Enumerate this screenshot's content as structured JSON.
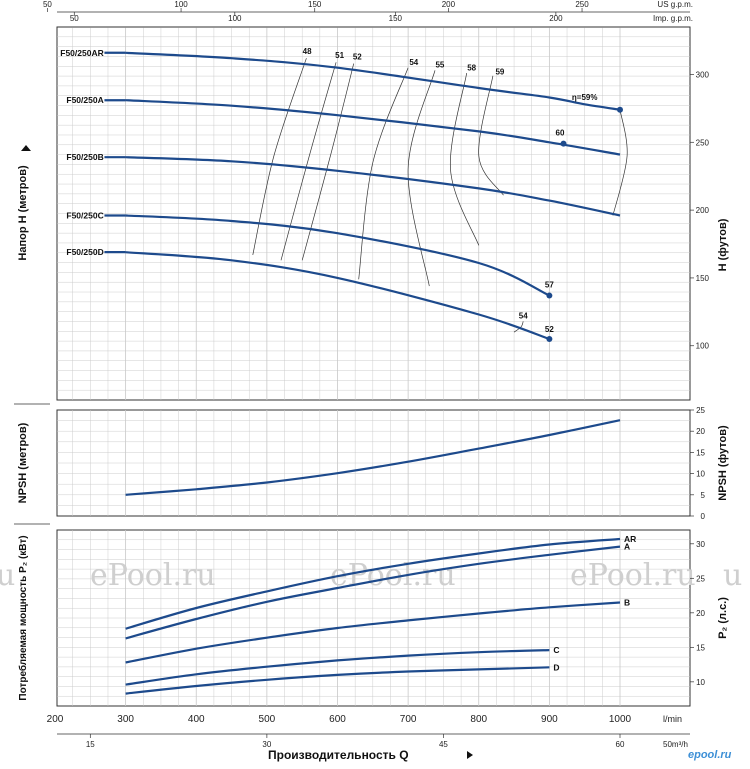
{
  "chart_data": [
    {
      "type": "line",
      "name": "head",
      "ylabel": "Напор H   (метров)",
      "ylabel_right": "H   (футов)",
      "x_unit": "l/min",
      "xlim": [
        200,
        1000
      ],
      "ylim_feet": [
        60,
        335
      ],
      "y_ticks_feet": [
        100,
        150,
        200,
        250,
        300
      ],
      "series": [
        {
          "name": "F50/250AR",
          "x": [
            300,
            450,
            600,
            800,
            900,
            950,
            1000
          ],
          "y": [
            316,
            312,
            305,
            290,
            283,
            278,
            274
          ]
        },
        {
          "name": "F50/250A",
          "x": [
            300,
            450,
            600,
            800,
            900,
            1000
          ],
          "y": [
            281,
            277,
            270,
            258,
            250,
            241
          ]
        },
        {
          "name": "F50/250B",
          "x": [
            300,
            450,
            600,
            800,
            900,
            1000
          ],
          "y": [
            239,
            236,
            229,
            216,
            207,
            196
          ]
        },
        {
          "name": "F50/250C",
          "x": [
            300,
            450,
            600,
            800,
            900
          ],
          "y": [
            196,
            192,
            183,
            161,
            137
          ]
        },
        {
          "name": "F50/250D",
          "x": [
            300,
            450,
            600,
            800,
            900
          ],
          "y": [
            169,
            163,
            150,
            123,
            105
          ]
        }
      ],
      "efficiency_labels": [
        {
          "text": "48",
          "x": 557,
          "y": 315
        },
        {
          "text": "51",
          "x": 603,
          "y": 312
        },
        {
          "text": "52",
          "x": 628,
          "y": 311
        },
        {
          "text": "54",
          "x": 708,
          "y": 307
        },
        {
          "text": "55",
          "x": 745,
          "y": 305
        },
        {
          "text": "58",
          "x": 790,
          "y": 303
        },
        {
          "text": "59",
          "x": 830,
          "y": 300
        },
        {
          "text": "η=59%",
          "x": 950,
          "y": 281
        },
        {
          "text": "60",
          "x": 915,
          "y": 255
        },
        {
          "text": "57",
          "x": 900,
          "y": 143
        },
        {
          "text": "54",
          "x": 863,
          "y": 120
        },
        {
          "text": "52",
          "x": 900,
          "y": 110
        }
      ],
      "efficiency_points": [
        {
          "x": 1000,
          "y": 274
        },
        {
          "x": 920,
          "y": 249
        },
        {
          "x": 900,
          "y": 137
        },
        {
          "x": 900,
          "y": 105
        }
      ],
      "efficiency_lines": [
        {
          "x": [
            556,
            510,
            480
          ],
          "y": [
            312,
            240,
            167
          ]
        },
        {
          "x": [
            598,
            560,
            520
          ],
          "y": [
            309,
            240,
            163
          ]
        },
        {
          "x": [
            623,
            590,
            550
          ],
          "y": [
            308,
            240,
            163
          ]
        },
        {
          "x": [
            700,
            650,
            630
          ],
          "y": [
            305,
            235,
            149
          ]
        },
        {
          "x": [
            738,
            700,
            730
          ],
          "y": [
            303,
            230,
            144
          ]
        },
        {
          "x": [
            783,
            760,
            800
          ],
          "y": [
            301,
            230,
            174
          ]
        },
        {
          "x": [
            820,
            800,
            835
          ],
          "y": [
            299,
            240,
            211
          ]
        },
        {
          "x": [
            1000,
            1010,
            990
          ],
          "y": [
            274,
            240,
            196
          ]
        },
        {
          "x": [
            863,
            860,
            850
          ],
          "y": [
            118,
            114,
            110
          ]
        }
      ]
    },
    {
      "type": "line",
      "name": "npsh",
      "ylabel": "NPSH   (метров)",
      "ylabel_right": "NPSH   (футов)",
      "xlim": [
        200,
        1000
      ],
      "ylim_feet": [
        0,
        25
      ],
      "y_ticks_feet": [
        0,
        5,
        10,
        15,
        20,
        25
      ],
      "series": [
        {
          "name": "NPSH",
          "x": [
            300,
            400,
            500,
            600,
            700,
            800,
            900,
            1000
          ],
          "y": [
            5,
            6.3,
            7.9,
            10.1,
            12.8,
            15.9,
            19.1,
            22.6
          ]
        }
      ]
    },
    {
      "type": "line",
      "name": "power",
      "ylabel": "Потребляемая мощность P₂ (кВт)",
      "ylabel_right": "P₂  (л.с.)",
      "xlim": [
        200,
        1000
      ],
      "ylim_hp": [
        6.5,
        32
      ],
      "y_ticks_hp": [
        10,
        15,
        20,
        25,
        30
      ],
      "series": [
        {
          "name": "AR",
          "x": [
            300,
            400,
            500,
            600,
            700,
            800,
            900,
            1000
          ],
          "y": [
            17.7,
            20.7,
            23.1,
            25.3,
            27.1,
            28.6,
            29.9,
            30.7
          ]
        },
        {
          "name": "A",
          "x": [
            300,
            400,
            500,
            600,
            700,
            800,
            900,
            1000
          ],
          "y": [
            16.3,
            19.1,
            21.6,
            23.6,
            25.5,
            27.1,
            28.4,
            29.6
          ]
        },
        {
          "name": "B",
          "x": [
            300,
            400,
            500,
            600,
            700,
            800,
            900,
            1000
          ],
          "y": [
            12.8,
            14.8,
            16.4,
            17.8,
            18.9,
            19.9,
            20.8,
            21.5
          ]
        },
        {
          "name": "C",
          "x": [
            300,
            400,
            500,
            600,
            700,
            800,
            900
          ],
          "y": [
            9.6,
            11.1,
            12.2,
            13.1,
            13.8,
            14.3,
            14.6
          ]
        },
        {
          "name": "D",
          "x": [
            300,
            400,
            500,
            600,
            700,
            800,
            900
          ],
          "y": [
            8.3,
            9.4,
            10.3,
            11.0,
            11.5,
            11.8,
            12.1
          ]
        }
      ]
    }
  ],
  "axes": {
    "top_usgpm": {
      "unit": "US g.p.m.",
      "ticks": [
        50,
        100,
        150,
        200,
        250
      ]
    },
    "top_impgpm": {
      "unit": "Imp. g.p.m.",
      "ticks": [
        50,
        100,
        150,
        200
      ]
    },
    "bottom_lmin": {
      "unit": "l/min",
      "ticks": [
        200,
        300,
        400,
        500,
        600,
        700,
        800,
        900,
        1000
      ]
    },
    "bottom_m3h": {
      "unit": "50m³/h",
      "ticks": [
        15,
        30,
        45,
        60
      ]
    },
    "x_title": "Производительность Q"
  },
  "watermarks": [
    "ePool.ru",
    "ePool.ru",
    "ePool.ru"
  ],
  "watermark_edge": [
    "u",
    "u"
  ],
  "logo": "epool.ru",
  "colors": {
    "curve": "#1d4a8c",
    "grid": "#c8c8c8",
    "frame": "#333333",
    "thin": "#333333"
  }
}
